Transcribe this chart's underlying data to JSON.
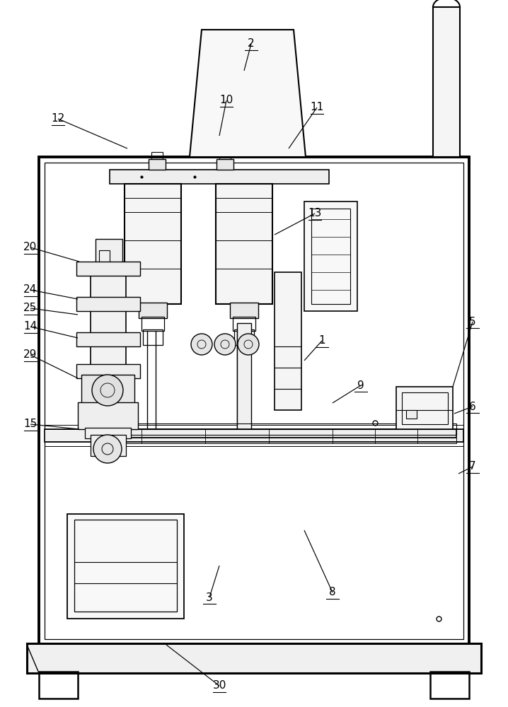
{
  "bg_color": "#ffffff",
  "lc": "#000000",
  "fig_width": 7.18,
  "fig_height": 10.0
}
